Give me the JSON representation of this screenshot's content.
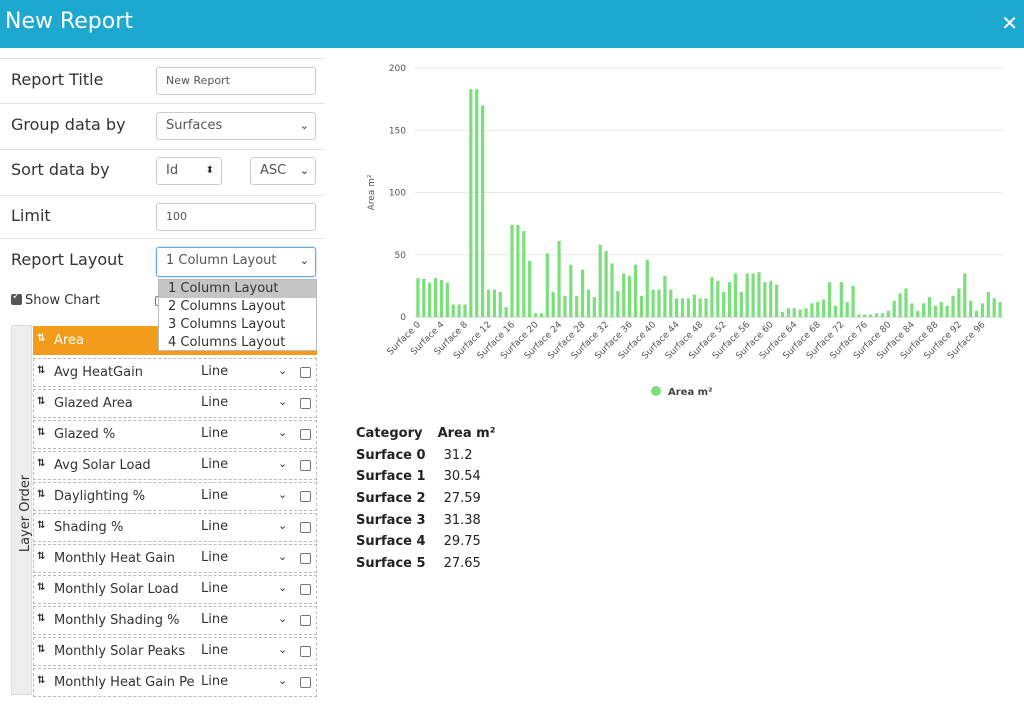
{
  "header": {
    "title": "New Report"
  },
  "form": {
    "report_title_label": "Report Title",
    "report_title_value": "New Report",
    "group_label": "Group data by",
    "group_value": "Surfaces",
    "sort_label": "Sort data by",
    "sort_field": "Id",
    "sort_order": "ASC",
    "limit_label": "Limit",
    "limit_value": "100",
    "layout_label": "Report Layout",
    "layout_value": "1 Column Layout",
    "layout_options": [
      "1 Column Layout",
      "2 Columns Layout",
      "3 Columns Layout",
      "4 Columns Layout"
    ],
    "show_chart_label": "Show Chart"
  },
  "layers": {
    "title": "Layer Order",
    "rows": [
      {
        "name": "Area",
        "type": ""
      },
      {
        "name": "Avg HeatGain",
        "type": "Line"
      },
      {
        "name": "Glazed Area",
        "type": "Line"
      },
      {
        "name": "Glazed %",
        "type": "Line"
      },
      {
        "name": "Avg Solar Load",
        "type": "Line"
      },
      {
        "name": "Daylighting %",
        "type": "Line"
      },
      {
        "name": "Shading %",
        "type": "Line"
      },
      {
        "name": "Monthly Heat Gain",
        "type": "Line"
      },
      {
        "name": "Monthly Solar Load",
        "type": "Line"
      },
      {
        "name": "Monthly Shading %",
        "type": "Line"
      },
      {
        "name": "Monthly Solar Peaks",
        "type": "Line"
      },
      {
        "name": "Monthly Heat Gain Pe",
        "type": "Line"
      }
    ]
  },
  "colors": {
    "header": "#1da9cf",
    "active_layer": "#f39c1c",
    "bar": "#7be07b"
  },
  "chart_data": {
    "type": "bar",
    "ylabel": "Area m²",
    "ylim": [
      0,
      200
    ],
    "yticks": [
      0,
      50,
      100,
      150,
      200
    ],
    "legend": "Area m²",
    "legend_position": "bottom",
    "tick_labels": [
      "Surface 0",
      "Surface 4",
      "Surface 8",
      "Surface 12",
      "Surface 16",
      "Surface 20",
      "Surface 24",
      "Surface 28",
      "Surface 32",
      "Surface 36",
      "Surface 40",
      "Surface 44",
      "Surface 48",
      "Surface 52",
      "Surface 56",
      "Surface 60",
      "Surface 64",
      "Surface 68",
      "Surface 72",
      "Surface 76",
      "Surface 80",
      "Surface 84",
      "Surface 88",
      "Surface 92",
      "Surface 96"
    ],
    "values": [
      31.2,
      30.54,
      27.59,
      31.38,
      29.75,
      27.65,
      10,
      10,
      10,
      183,
      183,
      170,
      22,
      22,
      20,
      8,
      74,
      74,
      69,
      45,
      3,
      3,
      51,
      20,
      61,
      17,
      42,
      17,
      38,
      22,
      16,
      58,
      53,
      43,
      21,
      35,
      33,
      42,
      17,
      46,
      22,
      22,
      33,
      22,
      15,
      15,
      15,
      18,
      15,
      15,
      32,
      29,
      20,
      28,
      35,
      20,
      35,
      35,
      36,
      28,
      29,
      26,
      4,
      7,
      7,
      6,
      7,
      11,
      12,
      14,
      28,
      9,
      28,
      12,
      25,
      2,
      2,
      2,
      3,
      3,
      5,
      13,
      19,
      23,
      11,
      5,
      11,
      16,
      9,
      12,
      9,
      17,
      23,
      35,
      13,
      5,
      11,
      20,
      15,
      12
    ]
  },
  "table": {
    "headers": [
      "Category",
      "Area m²"
    ],
    "rows": [
      [
        "Surface 0",
        "31.2"
      ],
      [
        "Surface 1",
        "30.54"
      ],
      [
        "Surface 2",
        "27.59"
      ],
      [
        "Surface 3",
        "31.38"
      ],
      [
        "Surface 4",
        "29.75"
      ],
      [
        "Surface 5",
        "27.65"
      ]
    ]
  }
}
